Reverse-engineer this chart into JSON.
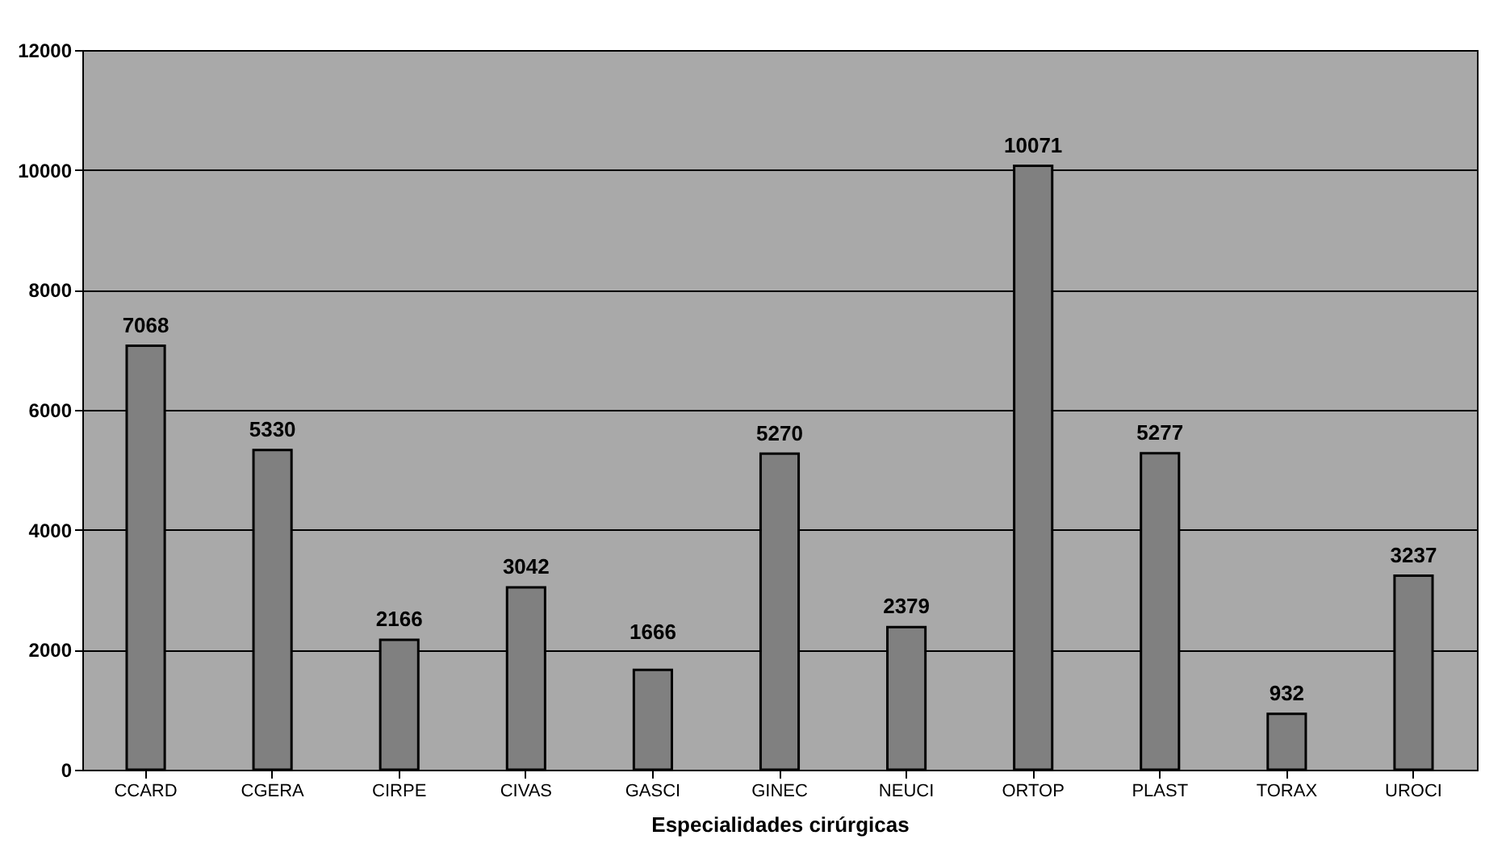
{
  "chart_data": {
    "type": "bar",
    "xlabel": "Especialidades cirúrgicas",
    "categories": [
      "CCARD",
      "CGERA",
      "CIRPE",
      "CIVAS",
      "GASCI",
      "GINEC",
      "NEUCI",
      "ORTOP",
      "PLAST",
      "TORAX",
      "UROCI"
    ],
    "values": [
      7068,
      5330,
      2166,
      3042,
      1666,
      5270,
      2379,
      10071,
      5277,
      932,
      3237
    ],
    "color": "#808080",
    "ylim": [
      0,
      12000
    ],
    "yticks": [
      0,
      2000,
      4000,
      6000,
      8000,
      10000,
      12000
    ],
    "grid": "y",
    "data_labels": true
  }
}
